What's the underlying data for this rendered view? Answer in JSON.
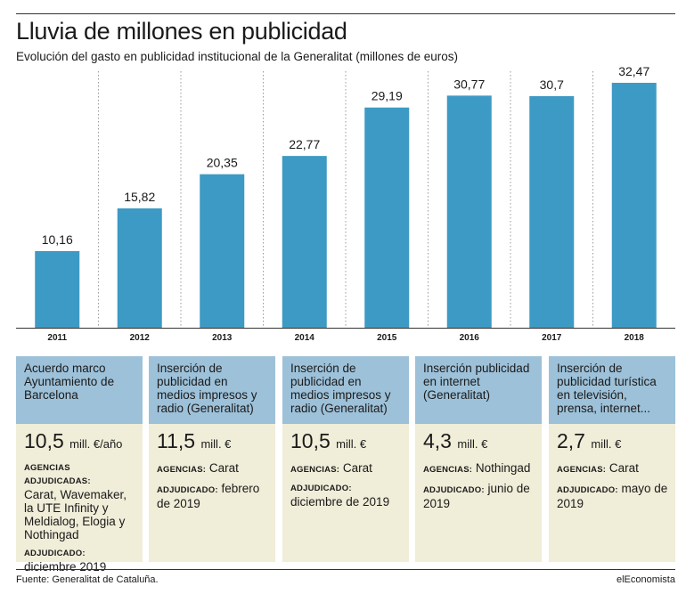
{
  "header": {
    "title": "Lluvia de millones en publicidad",
    "subtitle": "Evolución del gasto en publicidad institucional de la Generalitat (millones de euros)"
  },
  "chart_data": {
    "type": "bar",
    "categories": [
      "2011",
      "2012",
      "2013",
      "2014",
      "2015",
      "2016",
      "2017",
      "2018"
    ],
    "values": [
      10.16,
      15.82,
      20.35,
      22.77,
      29.19,
      30.77,
      30.7,
      32.47
    ],
    "value_labels": [
      "10,16",
      "15,82",
      "20,35",
      "22,77",
      "29,19",
      "30,77",
      "30,7",
      "32,47"
    ],
    "title": "Lluvia de millones en publicidad",
    "xlabel": "",
    "ylabel": "",
    "ylim": [
      0,
      34
    ],
    "grid": "vertical dotted separators",
    "bar_color": "#3d9ac4"
  },
  "cards": [
    {
      "heading": "Acuerdo marco Ayuntamiento de Barcelona",
      "amount": "10,5",
      "unit": "mill. €/año",
      "blocks": [
        {
          "label": "AGENCIAS ADJUDICADAS:",
          "value": "Carat, Wavemaker, la UTE Infinity y Meldialog, Elogia y Nothingad"
        },
        {
          "label": "ADJUDICADO:",
          "value": "diciembre 2019"
        }
      ]
    },
    {
      "heading": "Inserción de publicidad en medios impresos y radio (Generalitat)",
      "amount": "11,5",
      "unit": "mill. €",
      "blocks": [
        {
          "label": "AGENCIAS:",
          "value": "Carat"
        },
        {
          "label": "ADJUDICADO:",
          "value": "febrero de 2019"
        }
      ]
    },
    {
      "heading": "Inserción de publicidad en medios impresos y radio (Generalitat)",
      "amount": "10,5",
      "unit": "mill. €",
      "blocks": [
        {
          "label": "AGENCIAS:",
          "value": "Carat"
        },
        {
          "label": "ADJUDICADO:",
          "value": "diciembre de 2019"
        }
      ]
    },
    {
      "heading": "Inserción publicidad en internet (Generalitat)",
      "amount": "4,3",
      "unit": "mill. €",
      "blocks": [
        {
          "label": "AGENCIAS:",
          "value": "Nothingad"
        },
        {
          "label": "ADJUDICADO:",
          "value": "junio de 2019"
        }
      ]
    },
    {
      "heading": "Inserción de publicidad turística en televisión, prensa, internet...",
      "amount": "2,7",
      "unit": "mill. €",
      "blocks": [
        {
          "label": "AGENCIAS:",
          "value": "Carat"
        },
        {
          "label": "ADJUDICADO:",
          "value": "mayo de 2019"
        }
      ]
    }
  ],
  "footer": {
    "source": "Fuente: Generalitat de Cataluña.",
    "brand": "elEconomista"
  }
}
